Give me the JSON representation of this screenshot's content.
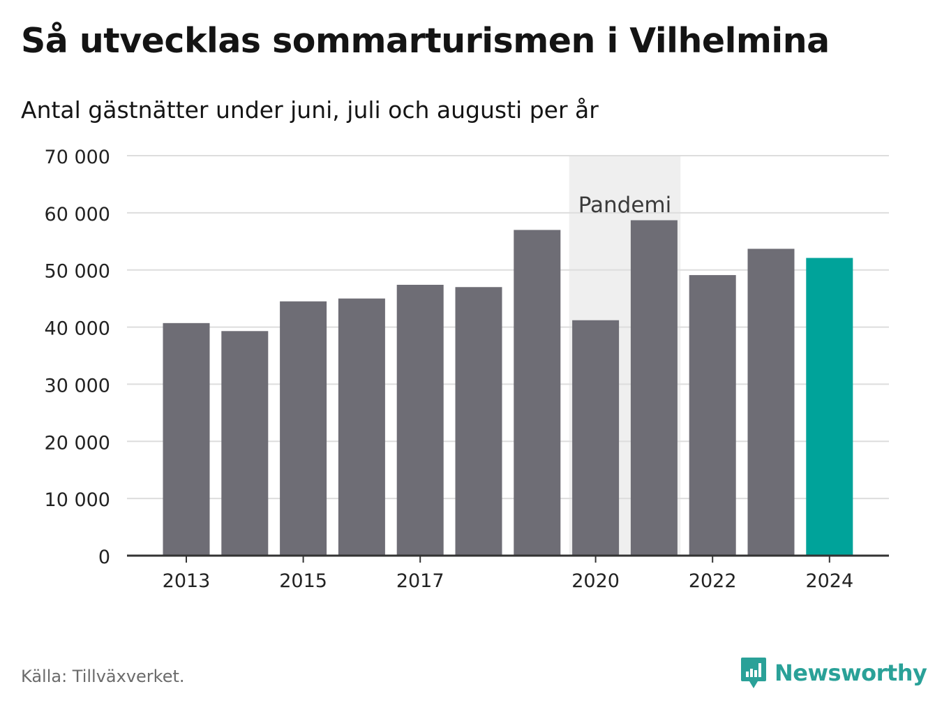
{
  "title": "Så utvecklas sommarturismen i Vilhelmina",
  "subtitle": "Antal gästnätter under juni, juli och augusti per år",
  "source": "Källa: Tillväxverket.",
  "brand": {
    "name": "Newsworthy",
    "icon": "newsworthy-logo-icon",
    "color": "#2aa198"
  },
  "colors": {
    "bar": "#6e6d75",
    "highlight": "#00a39a",
    "band": "#efefef",
    "grid": "#dddddd",
    "axis": "#333333"
  },
  "chart_data": {
    "type": "bar",
    "categories": [
      "2013",
      "2014",
      "2015",
      "2016",
      "2017",
      "2018",
      "2019",
      "2020",
      "2021",
      "2022",
      "2023",
      "2024"
    ],
    "values": [
      40700,
      39300,
      44500,
      45000,
      47400,
      47000,
      57000,
      41200,
      58700,
      49100,
      53700,
      52100
    ],
    "highlight": "2024",
    "ylim": [
      0,
      70000
    ],
    "yticks": [
      0,
      10000,
      20000,
      30000,
      40000,
      50000,
      60000,
      70000
    ],
    "ytick_labels": [
      "0",
      "10 000",
      "20 000",
      "30 000",
      "40 000",
      "50 000",
      "60 000",
      "70 000"
    ],
    "xtick_labels": [
      "2013",
      "2015",
      "2017",
      "2020",
      "2022",
      "2024"
    ],
    "annotation": {
      "label": "Pandemi",
      "from": "2020",
      "to": "2021"
    },
    "grid": true,
    "xlabel": "",
    "ylabel": ""
  }
}
